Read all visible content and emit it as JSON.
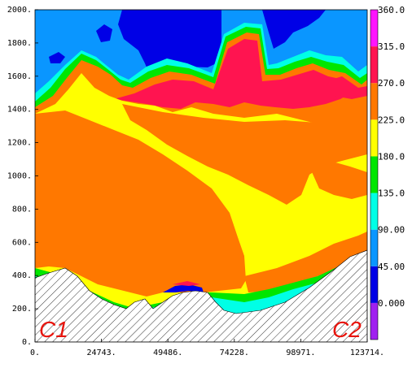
{
  "chart_data": {
    "type": "contour",
    "xlim": [
      0,
      123714
    ],
    "ylim": [
      0,
      2000
    ],
    "x_ticks": [
      "0.",
      "24743.",
      "49486.",
      "74228.",
      "98971.",
      "123714."
    ],
    "y_ticks": [
      "0.",
      "200.",
      "400.",
      "600.",
      "800.",
      "1000.",
      "1200.",
      "1400.",
      "1600.",
      "1800.",
      "2000."
    ],
    "colorbar": {
      "labels": [
        "0.000",
        "45.00",
        "90.00",
        "135.0",
        "180.0",
        "225.0",
        "270.0",
        "315.0",
        "360.0"
      ],
      "colors": [
        "#a020f0",
        "#0000e6",
        "#0a96ff",
        "#00ffe6",
        "#00e600",
        "#ffff00",
        "#ff7800",
        "#ff1450",
        "#ff14ff"
      ]
    },
    "annotations": [
      "C1",
      "C2"
    ],
    "regions": {
      "top": "#0000e6",
      "upper": "#0a96ff",
      "band_red": "#ff1450",
      "band_orange": "#ff7800",
      "band_yellow": "#ffff00",
      "band_green": "#00e600",
      "band_cyan": "#00ffe6",
      "terrain": "#ffffff"
    }
  }
}
